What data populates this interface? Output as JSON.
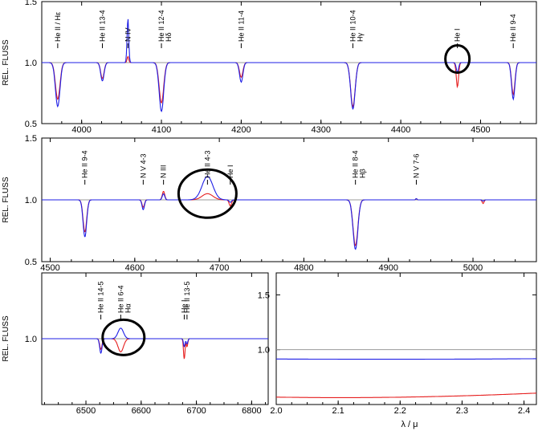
{
  "figure": {
    "xlabel_bottom_right": "λ / μ"
  },
  "colors": {
    "frame": "#000000",
    "series_blue": "#1f1fe6",
    "series_red": "#e61f1f",
    "series_gray": "#9a9a9a",
    "highlight_circle": "#000000"
  },
  "chart_data": [
    {
      "type": "line",
      "ylabel": "REL. FLUSS",
      "xlim": [
        3950,
        4570
      ],
      "ylim": [
        0.5,
        1.5
      ],
      "xticks": [
        4000,
        4100,
        4200,
        4300,
        4400,
        4500
      ],
      "yticks": [
        0.5,
        1.0,
        1.5
      ],
      "ytick_labels": [
        "0.5",
        "1.0",
        "1.5"
      ],
      "baseline": 1.0,
      "lines": [
        {
          "x": 3970,
          "label": "He II / Hε",
          "red": -0.3,
          "blue": -0.36,
          "width": 4
        },
        {
          "x": 4026,
          "label": "He II 13-4",
          "red": -0.13,
          "blue": -0.15,
          "width": 3
        },
        {
          "x": 4058,
          "label": "N IV",
          "red": 0.05,
          "blue": 0.36,
          "width": 1.5
        },
        {
          "x": 4100,
          "label": "He II 12-4",
          "label2": "Hδ",
          "red": -0.33,
          "blue": -0.4,
          "width": 4
        },
        {
          "x": 4200,
          "label": "He II 11-4",
          "red": -0.12,
          "blue": -0.16,
          "width": 3
        },
        {
          "x": 4340,
          "label": "He II 10-4",
          "label2": "Hγ",
          "red": -0.36,
          "blue": -0.38,
          "width": 4
        },
        {
          "x": 4471,
          "label": "He I",
          "red": -0.2,
          "blue": -0.08,
          "width": 2
        },
        {
          "x": 4541,
          "label": "He II 9-4",
          "red": -0.26,
          "blue": -0.3,
          "width": 3
        }
      ],
      "circles": [
        {
          "x": 4471,
          "y": 1.03
        }
      ]
    },
    {
      "type": "line",
      "ylabel": "REL. FLUSS",
      "xlim": [
        4490,
        5075
      ],
      "ylim": [
        0.5,
        1.5
      ],
      "xticks": [
        4500,
        4600,
        4700,
        4800,
        4900,
        5000
      ],
      "yticks": [
        0.5,
        1.0,
        1.5
      ],
      "ytick_labels": [
        "0.5",
        "1.0",
        "1.5"
      ],
      "baseline": 1.0,
      "lines": [
        {
          "x": 4541,
          "label": "He II 9-4",
          "red": -0.26,
          "blue": -0.3,
          "width": 3
        },
        {
          "x": 4610,
          "label": "N V 4-3",
          "red": -0.06,
          "blue": -0.08,
          "width": 2
        },
        {
          "x": 4634,
          "label": "N III",
          "red": 0.07,
          "blue": 0.05,
          "width": 2
        },
        {
          "x": 4686,
          "label": "He II 4-3",
          "red": 0.05,
          "blue": 0.19,
          "width": 9
        },
        {
          "x": 4713,
          "label": "He I",
          "red": -0.05,
          "blue": -0.02,
          "width": 2
        },
        {
          "x": 4861,
          "label": "He II 8-4",
          "label2": "Hβ",
          "red": -0.37,
          "blue": -0.4,
          "width": 4
        },
        {
          "x": 4933,
          "label": "N V 7-6",
          "red": 0.01,
          "blue": 0.01,
          "width": 1
        },
        {
          "x": 5012,
          "label": "",
          "red": -0.03,
          "blue": -0.01,
          "width": 1.5
        }
      ],
      "circles": [
        {
          "x": 4686,
          "y": 1.05
        }
      ]
    },
    {
      "type": "line",
      "ylabel": "REL. FLUSS",
      "xlim": [
        6420,
        6830
      ],
      "ylim": [
        0.5,
        1.5
      ],
      "xticks": [
        6500,
        6600,
        6700,
        6800
      ],
      "yticks": [
        1.0
      ],
      "ytick_labels": [
        "1.0"
      ],
      "baseline": 1.0,
      "lines": [
        {
          "x": 6527,
          "label": "He II 14-5",
          "red": -0.08,
          "blue": -0.11,
          "width": 3
        },
        {
          "x": 6563,
          "label": "He II 6-4",
          "label2": "Hα",
          "red": -0.1,
          "blue": 0.08,
          "width": 7
        },
        {
          "x": 6678,
          "label": "He I",
          "red": -0.15,
          "blue": -0.06,
          "width": 2
        },
        {
          "x": 6683,
          "label": "He II 13-5",
          "red": -0.06,
          "blue": -0.04,
          "width": 2
        }
      ],
      "circles": [
        {
          "x": 6568,
          "y": 1.01
        }
      ]
    },
    {
      "type": "line",
      "xlabel": "λ / μ",
      "xlim": [
        2.0,
        2.42
      ],
      "ylim": [
        0.5,
        1.7
      ],
      "xticks": [
        2.0,
        2.1,
        2.2,
        2.3,
        2.4
      ],
      "xtick_labels": [
        "2.0",
        "2.1",
        "2.2",
        "2.3",
        "2.4"
      ],
      "yticks": [
        1.0,
        1.5
      ],
      "ytick_labels": [
        "1.0",
        "1.5"
      ],
      "baseline": 1.0,
      "lines": [
        {
          "x": 2.037,
          "label": "",
          "red": -0.02,
          "blue": -0.03,
          "width": 1
        },
        {
          "x": 2.058,
          "label": "",
          "red": -0.25,
          "blue": -0.04,
          "width": 1
        },
        {
          "x": 2.112,
          "label": "",
          "red": -0.09,
          "blue": -0.02,
          "width": 1
        },
        {
          "x": 2.166,
          "label": "",
          "red": 0.04,
          "blue": 0.08,
          "width": 1
        },
        {
          "x": 2.189,
          "label": "",
          "red": -0.09,
          "blue": -0.03,
          "width": 1
        },
        {
          "x": 2.347,
          "label": "",
          "red": -0.03,
          "blue": -0.05,
          "width": 1
        }
      ],
      "circles": []
    }
  ]
}
